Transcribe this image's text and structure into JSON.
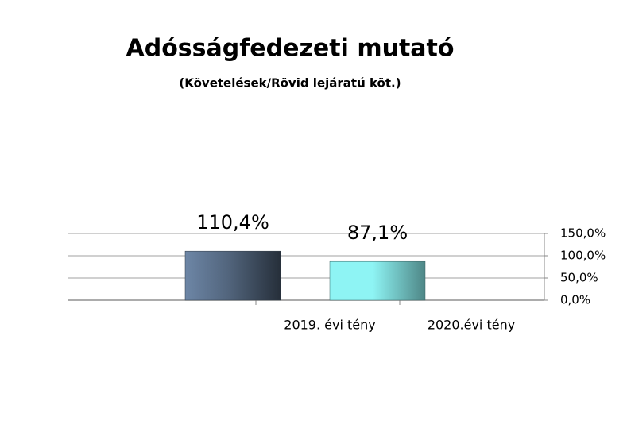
{
  "chart_data": {
    "type": "bar",
    "title": "Adósságfedezeti mutató",
    "subtitle": "(Követelések/Rövid lejáratú köt.)",
    "categories": [
      "2019. évi tény",
      "2020.évi tény"
    ],
    "values": [
      110.4,
      87.1
    ],
    "value_labels": [
      "110,4%",
      "87,1%"
    ],
    "colors": [
      "#6d86a6",
      "#8ef4f4"
    ],
    "ylim": [
      0,
      150
    ],
    "yticks": [
      {
        "value": 0,
        "label": "0,0%"
      },
      {
        "value": 50,
        "label": "50,0%"
      },
      {
        "value": 100,
        "label": "100,0%"
      },
      {
        "value": 150,
        "label": "150,0%"
      }
    ],
    "grid": true,
    "y_axis_side": "right"
  }
}
